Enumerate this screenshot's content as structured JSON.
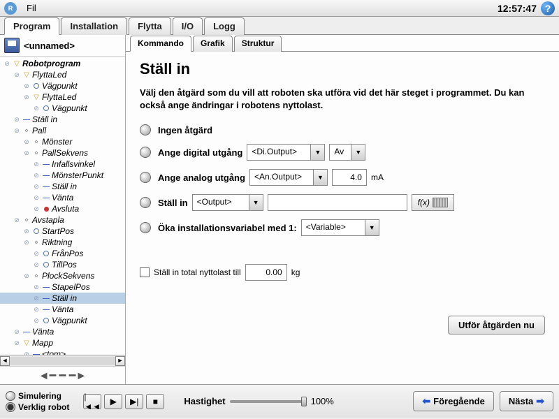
{
  "topbar": {
    "menu_file": "Fil",
    "time": "12:57:47"
  },
  "main_tabs": {
    "program": "Program",
    "installation": "Installation",
    "move": "Flytta",
    "io": "I/O",
    "log": "Logg"
  },
  "sidebar": {
    "filename": "<unnamed>",
    "tree": [
      {
        "indent": 0,
        "icon": "tri-down",
        "label": "Robotprogram",
        "bold": true
      },
      {
        "indent": 1,
        "icon": "tri-down",
        "label": "FlyttaLed",
        "italic": true
      },
      {
        "indent": 2,
        "icon": "circle-open",
        "label": "Vägpunkt",
        "italic": true
      },
      {
        "indent": 2,
        "icon": "tri-down",
        "label": "FlyttaLed",
        "italic": true
      },
      {
        "indent": 3,
        "icon": "circle-open",
        "label": "Vägpunkt",
        "italic": true
      },
      {
        "indent": 1,
        "icon": "dash-blue",
        "label": "Ställ in",
        "italic": true
      },
      {
        "indent": 1,
        "icon": "diamond",
        "label": "Pall",
        "italic": true
      },
      {
        "indent": 2,
        "icon": "diamond",
        "label": "Mönster",
        "italic": true
      },
      {
        "indent": 2,
        "icon": "diamond",
        "label": "PallSekvens",
        "italic": true
      },
      {
        "indent": 3,
        "icon": "dash-blue",
        "label": "Infallsvinkel",
        "italic": true
      },
      {
        "indent": 3,
        "icon": "dash-blue",
        "label": "MönsterPunkt",
        "italic": true
      },
      {
        "indent": 3,
        "icon": "dash-blue",
        "label": "Ställ in",
        "italic": true
      },
      {
        "indent": 3,
        "icon": "dash-blue",
        "label": "Vänta",
        "italic": true
      },
      {
        "indent": 3,
        "icon": "circle-red",
        "label": "Avsluta",
        "italic": true
      },
      {
        "indent": 1,
        "icon": "diamond",
        "label": "Avstapla",
        "italic": true
      },
      {
        "indent": 2,
        "icon": "circle-open",
        "label": "StartPos",
        "italic": true
      },
      {
        "indent": 2,
        "icon": "diamond",
        "label": "Riktning",
        "italic": true
      },
      {
        "indent": 3,
        "icon": "circle-open",
        "label": "FrånPos",
        "italic": true
      },
      {
        "indent": 3,
        "icon": "circle-open",
        "label": "TillPos",
        "italic": true
      },
      {
        "indent": 2,
        "icon": "diamond",
        "label": "PlockSekvens",
        "italic": true
      },
      {
        "indent": 3,
        "icon": "dash-blue",
        "label": "StapelPos",
        "italic": true
      },
      {
        "indent": 3,
        "icon": "dash-blue",
        "label": "Ställ in",
        "italic": true,
        "selected": true
      },
      {
        "indent": 3,
        "icon": "dash-blue",
        "label": "Vänta",
        "italic": true
      },
      {
        "indent": 3,
        "icon": "circle-open",
        "label": "Vägpunkt",
        "italic": true
      },
      {
        "indent": 1,
        "icon": "dash-blue",
        "label": "Vänta",
        "italic": true
      },
      {
        "indent": 1,
        "icon": "tri-down",
        "label": "Mapp",
        "italic": true
      },
      {
        "indent": 2,
        "icon": "dash-blue",
        "label": "<tom>",
        "italic": true
      }
    ]
  },
  "sub_tabs": {
    "command": "Kommando",
    "graphics": "Grafik",
    "structure": "Struktur"
  },
  "panel": {
    "title": "Ställ in",
    "description": "Välj den åtgärd som du vill att roboten ska utföra vid det här steget i programmet. Du kan också ange ändringar i robotens nyttolast.",
    "opt_none": "Ingen åtgärd",
    "opt_digital": "Ange digital utgång",
    "digital_output": "<Di.Output>",
    "digital_state": "Av",
    "opt_analog": "Ange analog utgång",
    "analog_output": "<An.Output>",
    "analog_value": "4.0",
    "analog_unit": "mA",
    "opt_set": "Ställ in",
    "set_output": "<Output>",
    "fx_label": "f(x)",
    "opt_increment": "Öka installationsvariabel med 1:",
    "increment_var": "<Variable>",
    "payload_label": "Ställ in total nyttolast till",
    "payload_value": "0.00",
    "payload_unit": "kg",
    "action_now": "Utför åtgärden nu"
  },
  "footer": {
    "simulation": "Simulering",
    "real_robot": "Verklig robot",
    "speed_label": "Hastighet",
    "speed_value": "100%",
    "prev": "Föregående",
    "next": "Nästa"
  }
}
